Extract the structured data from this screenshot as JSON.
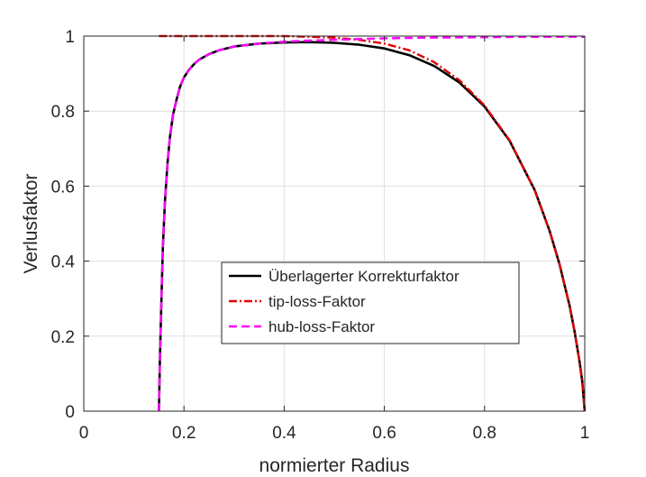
{
  "chart_data": {
    "type": "line",
    "title": "",
    "xlabel": "normierter Radius",
    "ylabel": "Verlusfaktor",
    "xlim": [
      0,
      1
    ],
    "ylim": [
      0,
      1
    ],
    "xticks": [
      0,
      0.2,
      0.4,
      0.6,
      0.8,
      1
    ],
    "xtick_labels": [
      "0",
      "0.2",
      "0.4",
      "0.6",
      "0.8",
      "1"
    ],
    "yticks": [
      0,
      0.2,
      0.4,
      0.6,
      0.8,
      1
    ],
    "ytick_labels": [
      "0",
      "0.2",
      "0.4",
      "0.6",
      "0.8",
      "1"
    ],
    "grid": true,
    "legend_position": "center",
    "series": [
      {
        "name": "Überlagerter Korrekturfaktor",
        "color": "#000000",
        "style": "solid",
        "x": [
          0.15,
          0.152,
          0.155,
          0.158,
          0.162,
          0.167,
          0.172,
          0.178,
          0.185,
          0.192,
          0.2,
          0.21,
          0.22,
          0.23,
          0.25,
          0.27,
          0.3,
          0.35,
          0.4,
          0.45,
          0.5,
          0.55,
          0.6,
          0.65,
          0.7,
          0.75,
          0.8,
          0.85,
          0.9,
          0.93,
          0.95,
          0.97,
          0.98,
          0.99,
          0.995,
          1.0
        ],
        "y": [
          0,
          0.14,
          0.3,
          0.44,
          0.56,
          0.66,
          0.73,
          0.79,
          0.83,
          0.865,
          0.89,
          0.91,
          0.925,
          0.937,
          0.952,
          0.962,
          0.972,
          0.98,
          0.983,
          0.984,
          0.982,
          0.977,
          0.967,
          0.949,
          0.92,
          0.876,
          0.812,
          0.721,
          0.59,
          0.48,
          0.39,
          0.28,
          0.21,
          0.13,
          0.08,
          0
        ]
      },
      {
        "name": "tip-loss-Faktor",
        "color": "#e00000",
        "style": "dashdot",
        "x": [
          0.15,
          0.2,
          0.3,
          0.4,
          0.45,
          0.5,
          0.55,
          0.6,
          0.65,
          0.7,
          0.75,
          0.8,
          0.85,
          0.9,
          0.93,
          0.95,
          0.97,
          0.98,
          0.99,
          0.995,
          1.0
        ],
        "y": [
          1.0,
          1.0,
          1.0,
          1.0,
          0.998,
          0.996,
          0.99,
          0.98,
          0.962,
          0.93,
          0.882,
          0.815,
          0.722,
          0.59,
          0.48,
          0.39,
          0.28,
          0.21,
          0.13,
          0.08,
          0
        ]
      },
      {
        "name": "hub-loss-Faktor",
        "color": "#ff00ff",
        "style": "dashed",
        "x": [
          0.15,
          0.152,
          0.155,
          0.158,
          0.162,
          0.167,
          0.172,
          0.178,
          0.185,
          0.192,
          0.2,
          0.21,
          0.22,
          0.23,
          0.25,
          0.27,
          0.3,
          0.35,
          0.4,
          0.45,
          0.5,
          0.55,
          0.6,
          0.65,
          0.7,
          0.8,
          0.9,
          1.0
        ],
        "y": [
          0,
          0.14,
          0.3,
          0.44,
          0.56,
          0.66,
          0.73,
          0.79,
          0.83,
          0.865,
          0.89,
          0.91,
          0.925,
          0.937,
          0.952,
          0.962,
          0.972,
          0.98,
          0.985,
          0.988,
          0.99,
          0.992,
          0.994,
          0.995,
          0.996,
          0.997,
          0.998,
          0.998
        ]
      }
    ]
  }
}
